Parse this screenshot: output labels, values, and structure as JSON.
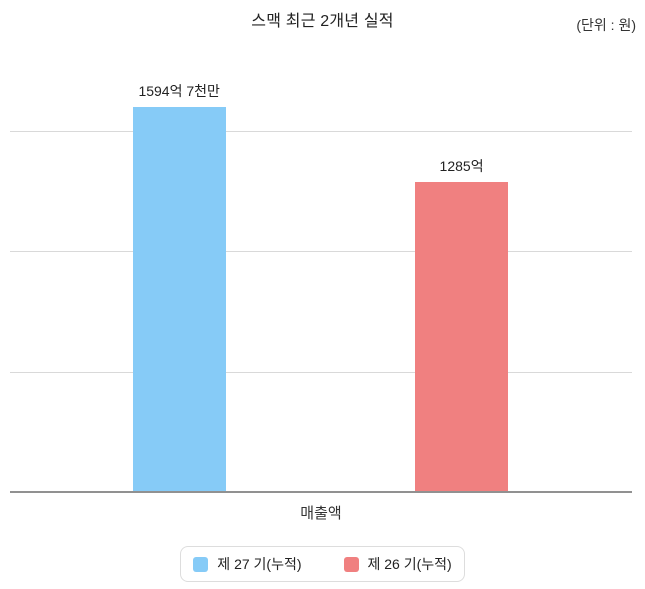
{
  "title": "스맥 최근 2개년 실적",
  "unit_label": "(단위 : 원)",
  "chart_data": {
    "type": "bar",
    "title": "스맥 최근 2개년 실적",
    "unit": "원",
    "categories": [
      "매출액"
    ],
    "series": [
      {
        "name": "제 27 기(누적)",
        "values": [
          1594.7
        ],
        "value_labels": [
          "1594억 7천만"
        ],
        "color": "#86CBF7"
      },
      {
        "name": "제 26 기(누적)",
        "values": [
          1285.0
        ],
        "value_labels": [
          "1285억"
        ],
        "color": "#F08080"
      }
    ],
    "value_unit": "억 원",
    "ylim": [
      0,
      1750
    ],
    "gridline_values": [
      500,
      1000,
      1500
    ],
    "grid": "horizontal",
    "y_tick_labels_visible": false,
    "legend_position": "bottom",
    "xlabel": "",
    "ylabel": ""
  },
  "legend": {
    "items": [
      {
        "label": "제 27 기(누적)",
        "color": "#86CBF7"
      },
      {
        "label": "제 26 기(누적)",
        "color": "#F08080"
      }
    ]
  }
}
